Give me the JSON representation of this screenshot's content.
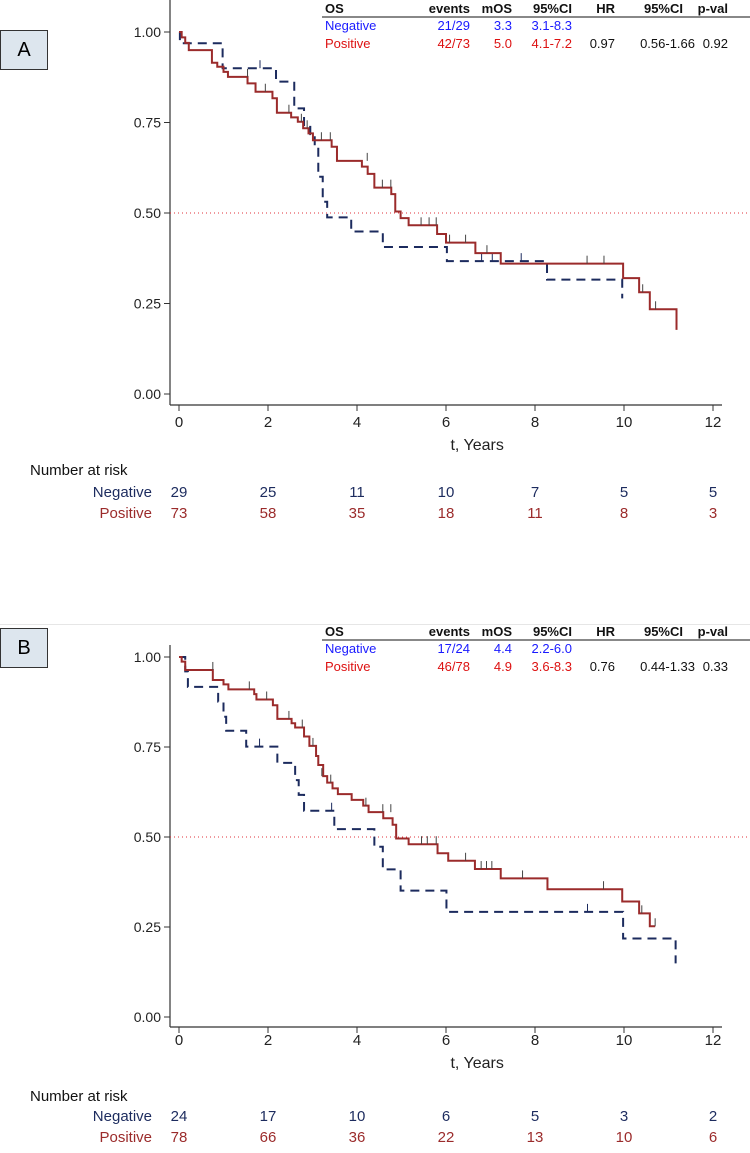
{
  "chart_data": [
    {
      "panel_label": "A",
      "type": "line",
      "subtype": "kaplan-meier",
      "xlabel": "t,  Years",
      "ylabel": "",
      "xlim": [
        0,
        12
      ],
      "ylim": [
        0,
        1
      ],
      "xticks": [
        "0",
        "2",
        "4",
        "6",
        "8",
        "10",
        "12"
      ],
      "yticks": [
        "0.00",
        "0.25",
        "0.50",
        "0.75",
        "1.00"
      ],
      "reference_line": 0.5,
      "grid": false,
      "series": [
        {
          "name": "Negative",
          "style": "dashed",
          "color": "#1c2b5e",
          "steps": [
            [
              0,
              1
            ],
            [
              0.02,
              0.969
            ],
            [
              0.98,
              0.9
            ],
            [
              2.18,
              0.863
            ],
            [
              2.59,
              0.789
            ],
            [
              2.81,
              0.738
            ],
            [
              2.95,
              0.718
            ],
            [
              3.05,
              0.683
            ],
            [
              3.13,
              0.6
            ],
            [
              3.23,
              0.531
            ],
            [
              3.33,
              0.488
            ],
            [
              3.87,
              0.449
            ],
            [
              4.58,
              0.406
            ],
            [
              6.02,
              0.367
            ],
            [
              8.27,
              0.316
            ],
            [
              9.96,
              0.264
            ]
          ],
          "end": 9.96,
          "censored": [
            [
              1.82,
              0.9
            ],
            [
              6.8,
              0.367
            ],
            [
              7.04,
              0.367
            ],
            [
              7.69,
              0.367
            ]
          ]
        },
        {
          "name": "Positive",
          "style": "solid",
          "color": "#9b2b2b",
          "steps": [
            [
              0,
              1
            ],
            [
              0.06,
              0.985
            ],
            [
              0.14,
              0.97
            ],
            [
              0.22,
              0.95
            ],
            [
              0.74,
              0.915
            ],
            [
              0.86,
              0.904
            ],
            [
              1.0,
              0.89
            ],
            [
              1.1,
              0.876
            ],
            [
              1.54,
              0.858
            ],
            [
              1.72,
              0.835
            ],
            [
              2.1,
              0.817
            ],
            [
              2.2,
              0.777
            ],
            [
              2.52,
              0.764
            ],
            [
              2.67,
              0.752
            ],
            [
              2.79,
              0.734
            ],
            [
              2.91,
              0.72
            ],
            [
              3.01,
              0.701
            ],
            [
              3.43,
              0.683
            ],
            [
              3.55,
              0.644
            ],
            [
              4.11,
              0.628
            ],
            [
              4.24,
              0.608
            ],
            [
              4.39,
              0.57
            ],
            [
              4.77,
              0.552
            ],
            [
              4.86,
              0.504
            ],
            [
              4.98,
              0.486
            ],
            [
              5.16,
              0.466
            ],
            [
              5.8,
              0.442
            ],
            [
              6.0,
              0.418
            ],
            [
              6.66,
              0.389
            ],
            [
              7.23,
              0.36
            ],
            [
              9.98,
              0.32
            ],
            [
              10.34,
              0.281
            ],
            [
              10.58,
              0.234
            ]
          ],
          "end": 11.18,
          "end_value": 0.177,
          "censored": [
            [
              1.54,
              0.876
            ],
            [
              1.94,
              0.835
            ],
            [
              2.47,
              0.777
            ],
            [
              2.75,
              0.752
            ],
            [
              2.88,
              0.734
            ],
            [
              3.2,
              0.701
            ],
            [
              3.4,
              0.701
            ],
            [
              4.23,
              0.644
            ],
            [
              4.57,
              0.57
            ],
            [
              4.76,
              0.57
            ],
            [
              5.44,
              0.466
            ],
            [
              5.62,
              0.466
            ],
            [
              5.78,
              0.466
            ],
            [
              6.08,
              0.418
            ],
            [
              6.44,
              0.418
            ],
            [
              6.92,
              0.389
            ],
            [
              9.17,
              0.36
            ],
            [
              9.55,
              0.36
            ],
            [
              10.42,
              0.281
            ],
            [
              10.71,
              0.234
            ]
          ]
        }
      ],
      "table": {
        "headers": [
          "OS",
          "events",
          "mOS",
          "95%CI",
          "HR",
          "95%CI",
          "p-val"
        ],
        "rows": [
          {
            "group": "Negative",
            "events": "21/29",
            "mOS": "3.3",
            "ci": "3.1-8.3",
            "hr": "",
            "hr_ci": "",
            "p": "",
            "color": "#1a1aff"
          },
          {
            "group": "Positive",
            "events": "42/73",
            "mOS": "5.0",
            "ci": "4.1-7.2",
            "hr": "0.97",
            "hr_ci": "0.56-1.66",
            "p": "0.92",
            "color": "#dd1111"
          }
        ]
      },
      "risk_table": {
        "title": "Number at risk",
        "times": [
          0,
          2,
          4,
          6,
          8,
          10,
          12
        ],
        "rows": [
          {
            "name": "Negative",
            "values": [
              "29",
              "25",
              "11",
              "10",
              "7",
              "5",
              "5"
            ],
            "color": "#1c2b5e"
          },
          {
            "name": "Positive",
            "values": [
              "73",
              "58",
              "35",
              "18",
              "11",
              "8",
              "3"
            ],
            "color": "#9b2b2b"
          }
        ]
      }
    },
    {
      "panel_label": "B",
      "type": "line",
      "subtype": "kaplan-meier",
      "xlabel": "t,  Years",
      "ylabel": "",
      "xlim": [
        0,
        12
      ],
      "ylim": [
        0,
        1
      ],
      "xticks": [
        "0",
        "2",
        "4",
        "6",
        "8",
        "10",
        "12"
      ],
      "yticks": [
        "0.00",
        "0.25",
        "0.50",
        "0.75",
        "1.00"
      ],
      "reference_line": 0.5,
      "grid": false,
      "series": [
        {
          "name": "Negative",
          "style": "dashed",
          "color": "#1c2b5e",
          "steps": [
            [
              0,
              1
            ],
            [
              0.14,
              0.96
            ],
            [
              0.2,
              0.917
            ],
            [
              0.88,
              0.876
            ],
            [
              1.0,
              0.834
            ],
            [
              1.06,
              0.795
            ],
            [
              1.51,
              0.751
            ],
            [
              2.21,
              0.706
            ],
            [
              2.61,
              0.658
            ],
            [
              2.69,
              0.617
            ],
            [
              2.81,
              0.573
            ],
            [
              3.49,
              0.522
            ],
            [
              4.39,
              0.473
            ],
            [
              4.58,
              0.41
            ],
            [
              4.98,
              0.351
            ],
            [
              6.01,
              0.292
            ],
            [
              9.98,
              0.218
            ]
          ],
          "end": 11.16,
          "end_value": 0.149,
          "censored": [
            [
              1.81,
              0.751
            ],
            [
              3.43,
              0.573
            ],
            [
              9.18,
              0.292
            ]
          ]
        },
        {
          "name": "Positive",
          "style": "solid",
          "color": "#9b2b2b",
          "steps": [
            [
              0,
              1
            ],
            [
              0.06,
              0.987
            ],
            [
              0.14,
              0.964
            ],
            [
              0.76,
              0.936
            ],
            [
              1.0,
              0.924
            ],
            [
              1.11,
              0.91
            ],
            [
              1.69,
              0.897
            ],
            [
              1.74,
              0.882
            ],
            [
              2.11,
              0.866
            ],
            [
              2.21,
              0.828
            ],
            [
              2.53,
              0.816
            ],
            [
              2.61,
              0.804
            ],
            [
              2.81,
              0.779
            ],
            [
              2.93,
              0.753
            ],
            [
              3.08,
              0.725
            ],
            [
              3.13,
              0.7
            ],
            [
              3.24,
              0.669
            ],
            [
              3.33,
              0.651
            ],
            [
              3.45,
              0.635
            ],
            [
              3.57,
              0.619
            ],
            [
              3.88,
              0.603
            ],
            [
              4.14,
              0.587
            ],
            [
              4.26,
              0.569
            ],
            [
              4.59,
              0.552
            ],
            [
              4.8,
              0.534
            ],
            [
              4.88,
              0.496
            ],
            [
              5.16,
              0.48
            ],
            [
              5.81,
              0.455
            ],
            [
              6.05,
              0.434
            ],
            [
              6.65,
              0.411
            ],
            [
              7.23,
              0.385
            ],
            [
              8.28,
              0.355
            ],
            [
              9.96,
              0.321
            ],
            [
              10.34,
              0.288
            ],
            [
              10.58,
              0.252
            ]
          ],
          "end": 10.7,
          "censored": [
            [
              0.76,
              0.964
            ],
            [
              1.58,
              0.91
            ],
            [
              1.97,
              0.882
            ],
            [
              2.47,
              0.828
            ],
            [
              2.77,
              0.804
            ],
            [
              3.01,
              0.753
            ],
            [
              3.21,
              0.669
            ],
            [
              3.41,
              0.651
            ],
            [
              4.2,
              0.587
            ],
            [
              4.58,
              0.569
            ],
            [
              4.76,
              0.569
            ],
            [
              5.45,
              0.48
            ],
            [
              5.58,
              0.48
            ],
            [
              5.78,
              0.48
            ],
            [
              6.44,
              0.434
            ],
            [
              6.79,
              0.411
            ],
            [
              6.91,
              0.411
            ],
            [
              7.03,
              0.411
            ],
            [
              7.72,
              0.385
            ],
            [
              9.54,
              0.355
            ],
            [
              10.4,
              0.288
            ],
            [
              10.7,
              0.252
            ]
          ]
        }
      ],
      "table": {
        "headers": [
          "OS",
          "events",
          "mOS",
          "95%CI",
          "HR",
          "95%CI",
          "p-val"
        ],
        "rows": [
          {
            "group": "Negative",
            "events": "17/24",
            "mOS": "4.4",
            "ci": "2.2-6.0",
            "hr": "",
            "hr_ci": "",
            "p": "",
            "color": "#1a1aff"
          },
          {
            "group": "Positive",
            "events": "46/78",
            "mOS": "4.9",
            "ci": "3.6-8.3",
            "hr": "0.76",
            "hr_ci": "0.44-1.33",
            "p": "0.33",
            "color": "#dd1111"
          }
        ]
      },
      "risk_table": {
        "title": "Number at risk",
        "times": [
          0,
          2,
          4,
          6,
          8,
          10,
          12
        ],
        "rows": [
          {
            "name": "Negative",
            "values": [
              "24",
              "17",
              "10",
              "6",
              "5",
              "3",
              "2"
            ],
            "color": "#1c2b5e"
          },
          {
            "name": "Positive",
            "values": [
              "78",
              "66",
              "36",
              "22",
              "13",
              "10",
              "6"
            ],
            "color": "#9b2b2b"
          }
        ]
      }
    }
  ]
}
